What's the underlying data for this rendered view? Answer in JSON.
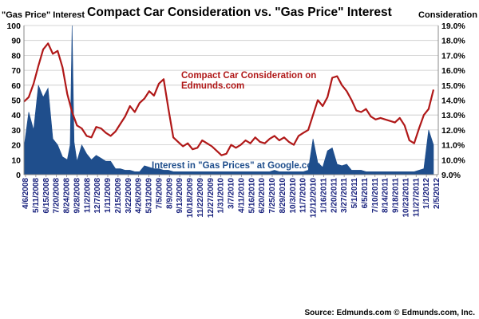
{
  "chart_data": {
    "type": "line",
    "title": "Compact Car Consideration vs. \"Gas Price\" Interest",
    "y_left_label": "\"Gas Price\" Interest",
    "y_right_label": "Consideration",
    "y_left_lim": [
      0,
      100
    ],
    "y_left_ticks": [
      "0",
      "10",
      "20",
      "30",
      "40",
      "50",
      "60",
      "70",
      "80",
      "90",
      "100"
    ],
    "y_right_lim": [
      9.0,
      19.0
    ],
    "y_right_ticks": [
      "9.0%",
      "10.0%",
      "11.0%",
      "12.0%",
      "13.0%",
      "14.0%",
      "15.0%",
      "16.0%",
      "17.0%",
      "18.0%",
      "19.0%"
    ],
    "x_ticks": [
      "4/6/2008",
      "5/11/2008",
      "6/15/2008",
      "7/20/2008",
      "8/24/2008",
      "9/28/2008",
      "11/2/2008",
      "12/7/2008",
      "1/11/2009",
      "2/15/2009",
      "3/22/2009",
      "4/26/2009",
      "5/31/2009",
      "7/5/2009",
      "8/9/2009",
      "9/13/2009",
      "10/18/2009",
      "11/22/2009",
      "12/27/2009",
      "1/31/2010",
      "3/7/2010",
      "4/11/2010",
      "5/16/2010",
      "6/20/2010",
      "7/25/2010",
      "8/29/2010",
      "10/3/2010",
      "11/7/2010",
      "12/12/2010",
      "1/16/2011",
      "2/20/2011",
      "3/27/2011",
      "5/1/2011",
      "6/5/2011",
      "7/10/2011",
      "8/14/2011",
      "9/18/2011",
      "10/23/2011",
      "11/27/2011",
      "1/1/2012",
      "2/5/2012"
    ],
    "series": [
      {
        "name": "Compact Car Consideration on Edmunds.com",
        "label_lines": [
          "Compact Car Consideration on",
          "Edmunds.com"
        ],
        "axis": "right",
        "color": "#b01818",
        "points": [
          [
            0,
            13.9
          ],
          [
            1,
            14.2
          ],
          [
            2,
            15.1
          ],
          [
            3,
            16.3
          ],
          [
            4,
            17.4
          ],
          [
            5,
            17.8
          ],
          [
            6,
            17.1
          ],
          [
            7,
            17.3
          ],
          [
            8,
            16.2
          ],
          [
            9,
            14.4
          ],
          [
            10,
            13.2
          ],
          [
            11,
            12.3
          ],
          [
            12,
            12.1
          ],
          [
            13,
            11.6
          ],
          [
            14,
            11.5
          ],
          [
            15,
            12.2
          ],
          [
            16,
            12.1
          ],
          [
            17,
            11.8
          ],
          [
            18,
            11.6
          ],
          [
            19,
            11.9
          ],
          [
            20,
            12.4
          ],
          [
            21,
            12.9
          ],
          [
            22,
            13.6
          ],
          [
            23,
            13.2
          ],
          [
            24,
            13.8
          ],
          [
            25,
            14.1
          ],
          [
            26,
            14.6
          ],
          [
            27,
            14.3
          ],
          [
            28,
            15.1
          ],
          [
            29,
            15.4
          ],
          [
            30,
            13.4
          ],
          [
            31,
            11.5
          ],
          [
            32,
            11.2
          ],
          [
            33,
            10.9
          ],
          [
            34,
            11.1
          ],
          [
            35,
            10.7
          ],
          [
            36,
            10.8
          ],
          [
            37,
            11.3
          ],
          [
            38,
            11.1
          ],
          [
            39,
            10.9
          ],
          [
            40,
            10.6
          ],
          [
            41,
            10.3
          ],
          [
            42,
            10.4
          ],
          [
            43,
            11.0
          ],
          [
            44,
            10.8
          ],
          [
            45,
            11.0
          ],
          [
            46,
            11.3
          ],
          [
            47,
            11.1
          ],
          [
            48,
            11.5
          ],
          [
            49,
            11.2
          ],
          [
            50,
            11.1
          ],
          [
            51,
            11.4
          ],
          [
            52,
            11.6
          ],
          [
            53,
            11.3
          ],
          [
            54,
            11.5
          ],
          [
            55,
            11.2
          ],
          [
            56,
            11.0
          ],
          [
            57,
            11.6
          ],
          [
            58,
            11.8
          ],
          [
            59,
            12.0
          ],
          [
            60,
            13.0
          ],
          [
            61,
            14.0
          ],
          [
            62,
            13.6
          ],
          [
            63,
            14.2
          ],
          [
            64,
            15.5
          ],
          [
            65,
            15.6
          ],
          [
            66,
            15.0
          ],
          [
            67,
            14.6
          ],
          [
            68,
            14.0
          ],
          [
            69,
            13.3
          ],
          [
            70,
            13.2
          ],
          [
            71,
            13.4
          ],
          [
            72,
            12.9
          ],
          [
            73,
            12.7
          ],
          [
            74,
            12.8
          ],
          [
            75,
            12.7
          ],
          [
            76,
            12.6
          ],
          [
            77,
            12.5
          ],
          [
            78,
            12.8
          ],
          [
            79,
            12.3
          ],
          [
            80,
            11.3
          ],
          [
            81,
            11.1
          ],
          [
            82,
            12.1
          ],
          [
            83,
            13.0
          ],
          [
            84,
            13.4
          ],
          [
            85,
            14.7
          ]
        ]
      },
      {
        "name": "Interest in \"Gas Prices\" at Google.com",
        "axis": "left",
        "color": "#1f4e8c",
        "points": [
          [
            0,
            18
          ],
          [
            1,
            42
          ],
          [
            2,
            30
          ],
          [
            3,
            60
          ],
          [
            4,
            52
          ],
          [
            5,
            58
          ],
          [
            6,
            24
          ],
          [
            7,
            20
          ],
          [
            8,
            12
          ],
          [
            9,
            10
          ],
          [
            9.6,
            20
          ],
          [
            10,
            100
          ],
          [
            10.4,
            22
          ],
          [
            11,
            9
          ],
          [
            12,
            20
          ],
          [
            13,
            14
          ],
          [
            14,
            10
          ],
          [
            15,
            13
          ],
          [
            16,
            11
          ],
          [
            17,
            9
          ],
          [
            18,
            9
          ],
          [
            19,
            4
          ],
          [
            20,
            4
          ],
          [
            21,
            3
          ],
          [
            22,
            3
          ],
          [
            23,
            2
          ],
          [
            24,
            2
          ],
          [
            25,
            6
          ],
          [
            26,
            5
          ],
          [
            27,
            4
          ],
          [
            28,
            4
          ],
          [
            29,
            3
          ],
          [
            30,
            3
          ],
          [
            31,
            2
          ],
          [
            32,
            2
          ],
          [
            33,
            2
          ],
          [
            34,
            2
          ],
          [
            35,
            2
          ],
          [
            36,
            2
          ],
          [
            37,
            2
          ],
          [
            38,
            2
          ],
          [
            39,
            2
          ],
          [
            40,
            2
          ],
          [
            41,
            2
          ],
          [
            42,
            2
          ],
          [
            43,
            2
          ],
          [
            44,
            2
          ],
          [
            45,
            2
          ],
          [
            46,
            2
          ],
          [
            47,
            2
          ],
          [
            48,
            2
          ],
          [
            49,
            2
          ],
          [
            50,
            2
          ],
          [
            51,
            2
          ],
          [
            52,
            3
          ],
          [
            53,
            2
          ],
          [
            54,
            2
          ],
          [
            55,
            2
          ],
          [
            56,
            2
          ],
          [
            57,
            2
          ],
          [
            58,
            2
          ],
          [
            59,
            3
          ],
          [
            60,
            24
          ],
          [
            61,
            8
          ],
          [
            62,
            5
          ],
          [
            63,
            16
          ],
          [
            64,
            18
          ],
          [
            65,
            7
          ],
          [
            66,
            6
          ],
          [
            67,
            7
          ],
          [
            68,
            3
          ],
          [
            69,
            3
          ],
          [
            70,
            3
          ],
          [
            71,
            2
          ],
          [
            72,
            2
          ],
          [
            73,
            2
          ],
          [
            74,
            2
          ],
          [
            75,
            2
          ],
          [
            76,
            2
          ],
          [
            77,
            2
          ],
          [
            78,
            2
          ],
          [
            79,
            2
          ],
          [
            80,
            2
          ],
          [
            81,
            2
          ],
          [
            82,
            3
          ],
          [
            83,
            4
          ],
          [
            84,
            30
          ],
          [
            85,
            20
          ]
        ]
      }
    ],
    "legend": "inline labels",
    "grid": true,
    "source": "Source: Edmunds.com   © Edmunds.com, Inc."
  }
}
